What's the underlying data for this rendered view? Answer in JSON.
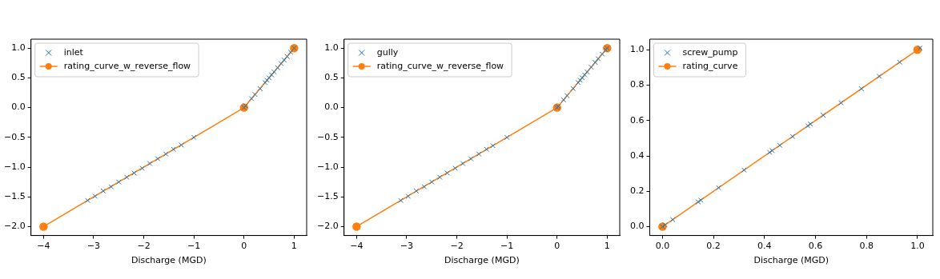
{
  "chart_data": [
    {
      "type": "scatter",
      "xlabel": "Discharge (MGD)",
      "xlim": [
        -4.25,
        1.25
      ],
      "ylim": [
        -2.15,
        1.15
      ],
      "legend": "top left",
      "grid": false,
      "xticks": [
        {
          "value": -4,
          "label": "−4"
        },
        {
          "value": -3,
          "label": "−3"
        },
        {
          "value": -2,
          "label": "−2"
        },
        {
          "value": -1,
          "label": "−1"
        },
        0,
        1
      ],
      "yticks": [
        {
          "value": -2,
          "label": "−2.0"
        },
        {
          "value": -1.5,
          "label": "−1.5"
        },
        {
          "value": -1,
          "label": "−1.0"
        },
        {
          "value": -0.5,
          "label": "−0.5"
        },
        {
          "value": 0,
          "label": "0.0"
        },
        0.5,
        {
          "value": 1,
          "label": "1.0"
        }
      ],
      "series": [
        {
          "name": "inlet",
          "color": "#1f77b4",
          "type": "scatter",
          "marker": "cross",
          "x": [
            -3.12,
            -2.97,
            -2.81,
            -2.65,
            -2.5,
            -2.34,
            -2.19,
            -2.03,
            -1.88,
            -1.72,
            -1.56,
            -1.41,
            -1.25,
            -1.0,
            0,
            0.03,
            0.15,
            0.22,
            0.32,
            0.42,
            0.46,
            0.5,
            0.55,
            0.6,
            0.67,
            0.74,
            0.8,
            0.86,
            0.93,
            1.0
          ],
          "values": [
            -1.56,
            -1.49,
            -1.4,
            -1.33,
            -1.25,
            -1.17,
            -1.1,
            -1.02,
            -0.94,
            -0.86,
            -0.78,
            -0.7,
            -0.63,
            -0.5,
            0,
            0.03,
            0.15,
            0.22,
            0.32,
            0.42,
            0.46,
            0.5,
            0.55,
            0.6,
            0.67,
            0.74,
            0.8,
            0.86,
            0.93,
            1.0
          ]
        },
        {
          "name": "rating_curve_w_reverse_flow",
          "color": "#ff7f0e",
          "type": "line",
          "marker": "circle",
          "x": [
            -4,
            0,
            1
          ],
          "values": [
            -2,
            0,
            1
          ]
        }
      ]
    },
    {
      "type": "scatter",
      "xlabel": "Discharge (MGD)",
      "xlim": [
        -4.25,
        1.25
      ],
      "ylim": [
        -2.15,
        1.15
      ],
      "legend": "top left",
      "grid": false,
      "xticks": [
        {
          "value": -4,
          "label": "−4"
        },
        {
          "value": -3,
          "label": "−3"
        },
        {
          "value": -2,
          "label": "−2"
        },
        {
          "value": -1,
          "label": "−1"
        },
        0,
        1
      ],
      "yticks": [
        {
          "value": -2,
          "label": "−2.0"
        },
        {
          "value": -1.5,
          "label": "−1.5"
        },
        {
          "value": -1,
          "label": "−1.0"
        },
        {
          "value": -0.5,
          "label": "−0.5"
        },
        {
          "value": 0,
          "label": "0.0"
        },
        0.5,
        {
          "value": 1,
          "label": "1.0"
        }
      ],
      "series": [
        {
          "name": "gully",
          "color": "#1f77b4",
          "type": "scatter",
          "marker": "cross",
          "x": [
            -3.12,
            -2.97,
            -2.81,
            -2.65,
            -2.5,
            -2.34,
            -2.19,
            -2.03,
            -1.88,
            -1.72,
            -1.56,
            -1.41,
            -1.28,
            -1.0,
            0,
            0.02,
            0.13,
            0.2,
            0.32,
            0.42,
            0.46,
            0.5,
            0.55,
            0.6,
            0.68,
            0.76,
            0.82,
            0.9,
            0.97,
            1.0
          ],
          "values": [
            -1.56,
            -1.49,
            -1.4,
            -1.33,
            -1.25,
            -1.17,
            -1.1,
            -1.02,
            -0.94,
            -0.86,
            -0.78,
            -0.7,
            -0.64,
            -0.5,
            0,
            0.02,
            0.13,
            0.2,
            0.32,
            0.42,
            0.46,
            0.5,
            0.55,
            0.6,
            0.68,
            0.76,
            0.82,
            0.9,
            0.97,
            1.0
          ]
        },
        {
          "name": "rating_curve_w_reverse_flow",
          "color": "#ff7f0e",
          "type": "line",
          "marker": "circle",
          "x": [
            -4,
            0,
            1
          ],
          "values": [
            -2,
            0,
            1
          ]
        }
      ]
    },
    {
      "type": "scatter",
      "xlabel": "Discharge (MGD)",
      "xlim": [
        -0.05,
        1.06
      ],
      "ylim": [
        -0.05,
        1.06
      ],
      "legend": "top left",
      "grid": false,
      "xticks": [
        {
          "value": 0,
          "label": "0.0"
        },
        0.2,
        0.4,
        0.6,
        0.8,
        {
          "value": 1,
          "label": "1.0"
        }
      ],
      "yticks": [
        {
          "value": 0,
          "label": "0.0"
        },
        0.2,
        0.4,
        0.6,
        0.8,
        {
          "value": 1,
          "label": "1.0"
        }
      ],
      "series": [
        {
          "name": "screw_pump",
          "color": "#1f77b4",
          "type": "scatter",
          "marker": "cross",
          "x": [
            0,
            0.01,
            0.04,
            0.14,
            0.15,
            0.22,
            0.32,
            0.42,
            0.43,
            0.46,
            0.51,
            0.57,
            0.58,
            0.63,
            0.7,
            0.78,
            0.85,
            0.93,
            1.01
          ],
          "values": [
            0,
            0.01,
            0.04,
            0.14,
            0.15,
            0.22,
            0.32,
            0.42,
            0.43,
            0.46,
            0.51,
            0.57,
            0.58,
            0.63,
            0.7,
            0.78,
            0.85,
            0.93,
            1.01
          ]
        },
        {
          "name": "rating_curve",
          "color": "#ff7f0e",
          "type": "line",
          "marker": "circle",
          "x": [
            0,
            1
          ],
          "values": [
            0,
            1
          ]
        }
      ]
    }
  ]
}
